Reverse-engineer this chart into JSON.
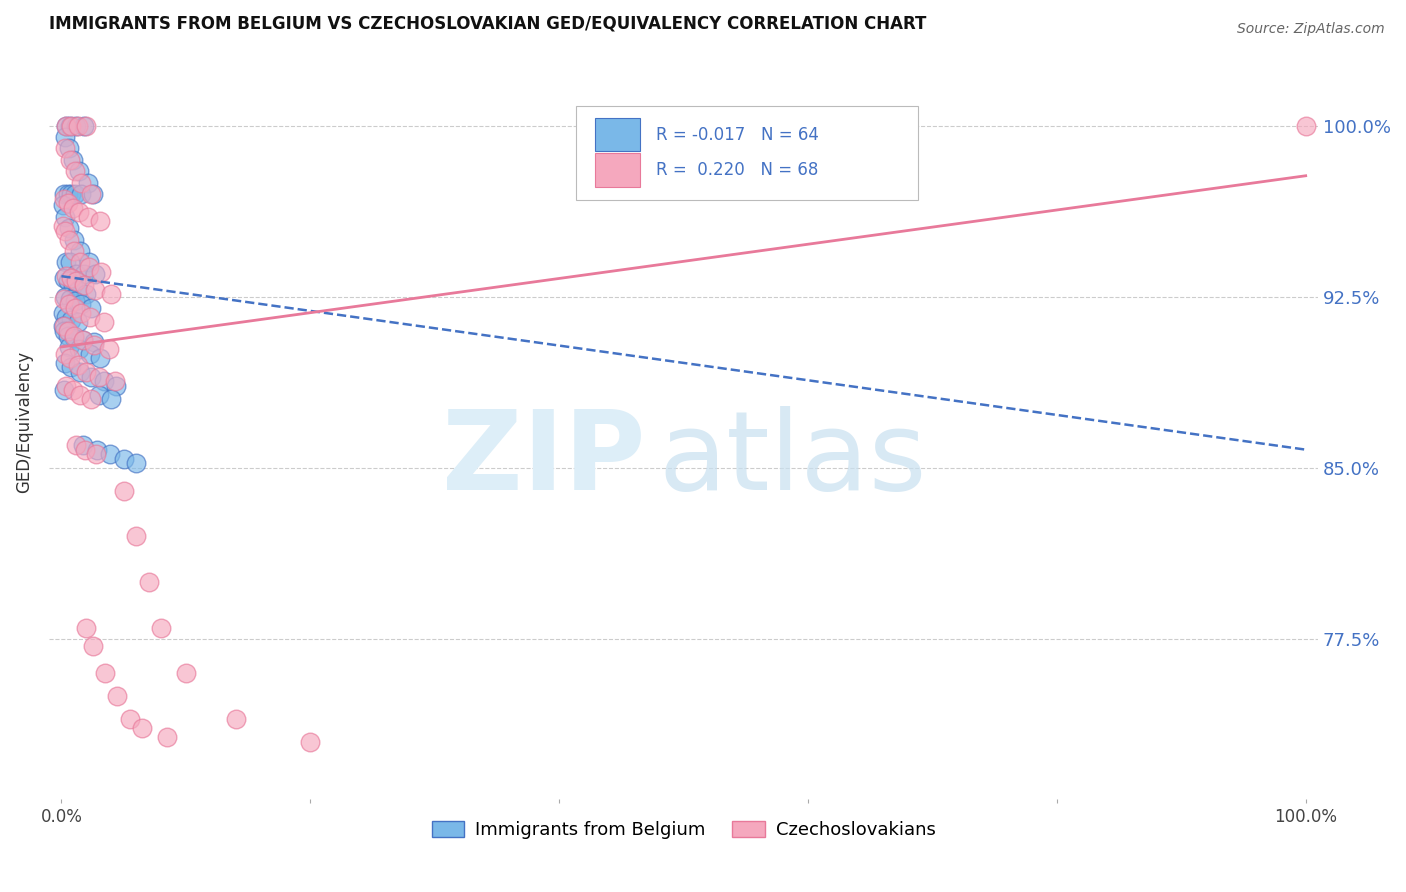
{
  "title": "IMMIGRANTS FROM BELGIUM VS CZECHOSLOVAKIAN GED/EQUIVALENCY CORRELATION CHART",
  "source": "Source: ZipAtlas.com",
  "ylabel": "GED/Equivalency",
  "ytick_labels": [
    "100.0%",
    "92.5%",
    "85.0%",
    "77.5%"
  ],
  "ytick_values": [
    1.0,
    0.925,
    0.85,
    0.775
  ],
  "ymin": 0.705,
  "ymax": 1.035,
  "xmin": -0.01,
  "xmax": 1.01,
  "color_blue": "#7ab8e8",
  "color_pink": "#f5a8be",
  "color_blue_line": "#4472c4",
  "color_pink_line": "#e8799a",
  "color_ytick": "#4472C4",
  "legend_label1": "Immigrants from Belgium",
  "legend_label2": "Czechoslovakians",
  "blue_x": [
    0.004,
    0.007,
    0.012,
    0.018,
    0.003,
    0.006,
    0.009,
    0.014,
    0.021,
    0.002,
    0.005,
    0.008,
    0.011,
    0.016,
    0.025,
    0.001,
    0.003,
    0.006,
    0.01,
    0.015,
    0.022,
    0.004,
    0.007,
    0.012,
    0.018,
    0.027,
    0.002,
    0.005,
    0.009,
    0.013,
    0.02,
    0.003,
    0.007,
    0.011,
    0.016,
    0.024,
    0.001,
    0.004,
    0.008,
    0.013,
    0.001,
    0.002,
    0.005,
    0.01,
    0.017,
    0.026,
    0.006,
    0.014,
    0.023,
    0.031,
    0.003,
    0.008,
    0.015,
    0.024,
    0.034,
    0.044,
    0.002,
    0.03,
    0.04,
    0.017,
    0.029,
    0.039,
    0.05,
    0.06
  ],
  "blue_y": [
    1.0,
    1.0,
    1.0,
    1.0,
    0.995,
    0.99,
    0.985,
    0.98,
    0.975,
    0.97,
    0.97,
    0.97,
    0.97,
    0.97,
    0.97,
    0.965,
    0.96,
    0.955,
    0.95,
    0.945,
    0.94,
    0.94,
    0.94,
    0.935,
    0.935,
    0.935,
    0.933,
    0.932,
    0.93,
    0.928,
    0.926,
    0.925,
    0.924,
    0.923,
    0.922,
    0.92,
    0.918,
    0.916,
    0.915,
    0.914,
    0.912,
    0.91,
    0.908,
    0.907,
    0.906,
    0.905,
    0.903,
    0.902,
    0.9,
    0.898,
    0.896,
    0.894,
    0.892,
    0.89,
    0.888,
    0.886,
    0.884,
    0.882,
    0.88,
    0.86,
    0.858,
    0.856,
    0.854,
    0.852
  ],
  "pink_x": [
    0.004,
    0.008,
    0.013,
    0.02,
    0.003,
    0.007,
    0.011,
    0.016,
    0.024,
    0.002,
    0.005,
    0.009,
    0.014,
    0.021,
    0.031,
    0.001,
    0.003,
    0.006,
    0.01,
    0.015,
    0.022,
    0.032,
    0.004,
    0.008,
    0.012,
    0.018,
    0.027,
    0.04,
    0.002,
    0.006,
    0.011,
    0.016,
    0.023,
    0.034,
    0.002,
    0.005,
    0.01,
    0.017,
    0.026,
    0.038,
    0.003,
    0.007,
    0.013,
    0.02,
    0.03,
    0.043,
    0.004,
    0.009,
    0.015,
    0.024,
    0.012,
    0.019,
    0.028,
    0.05,
    0.06,
    0.07,
    0.08,
    0.1,
    0.14,
    0.2,
    0.02,
    0.025,
    0.035,
    0.045,
    0.055,
    0.065,
    0.085,
    1.0
  ],
  "pink_y": [
    1.0,
    1.0,
    1.0,
    1.0,
    0.99,
    0.985,
    0.98,
    0.975,
    0.97,
    0.968,
    0.966,
    0.964,
    0.962,
    0.96,
    0.958,
    0.956,
    0.954,
    0.95,
    0.945,
    0.94,
    0.938,
    0.936,
    0.934,
    0.933,
    0.932,
    0.93,
    0.928,
    0.926,
    0.924,
    0.922,
    0.92,
    0.918,
    0.916,
    0.914,
    0.912,
    0.91,
    0.908,
    0.906,
    0.904,
    0.902,
    0.9,
    0.898,
    0.895,
    0.892,
    0.89,
    0.888,
    0.886,
    0.884,
    0.882,
    0.88,
    0.86,
    0.858,
    0.856,
    0.84,
    0.82,
    0.8,
    0.78,
    0.76,
    0.74,
    0.73,
    0.78,
    0.772,
    0.76,
    0.75,
    0.74,
    0.736,
    0.732,
    1.0
  ],
  "blue_line_x0": 0.0,
  "blue_line_x1": 1.0,
  "blue_line_y0": 0.934,
  "blue_line_y1": 0.858,
  "pink_line_x0": 0.0,
  "pink_line_x1": 1.0,
  "pink_line_y0": 0.903,
  "pink_line_y1": 0.978
}
